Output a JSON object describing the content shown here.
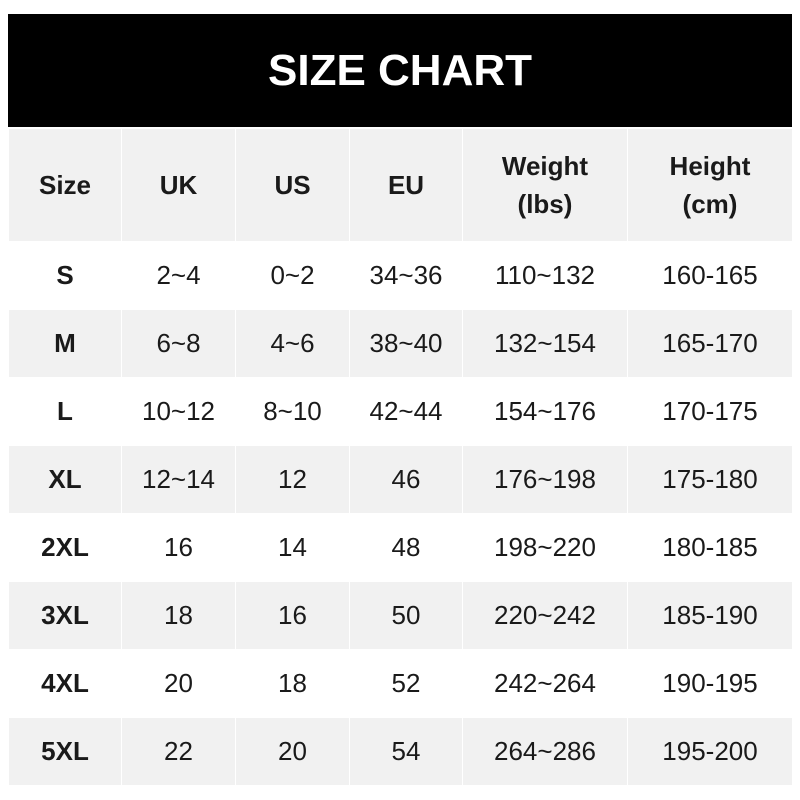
{
  "title": "SIZE CHART",
  "headers": [
    "Size",
    "UK",
    "US",
    "EU",
    "Weight\n(lbs)",
    "Height\n(cm)"
  ],
  "rows": [
    [
      "S",
      "2~4",
      "0~2",
      "34~36",
      "110~132",
      "160-165"
    ],
    [
      "M",
      "6~8",
      "4~6",
      "38~40",
      "132~154",
      "165-170"
    ],
    [
      "L",
      "10~12",
      "8~10",
      "42~44",
      "154~176",
      "170-175"
    ],
    [
      "XL",
      "12~14",
      "12",
      "46",
      "176~198",
      "175-180"
    ],
    [
      "2XL",
      "16",
      "14",
      "48",
      "198~220",
      "180-185"
    ],
    [
      "3XL",
      "18",
      "16",
      "50",
      "220~242",
      "185-190"
    ],
    [
      "4XL",
      "20",
      "18",
      "52",
      "242~264",
      "190-195"
    ],
    [
      "5XL",
      "22",
      "20",
      "54",
      "264~286",
      "195-200"
    ]
  ],
  "colors": {
    "title_bg": "#000000",
    "gray_row": "#f1f1f1"
  }
}
